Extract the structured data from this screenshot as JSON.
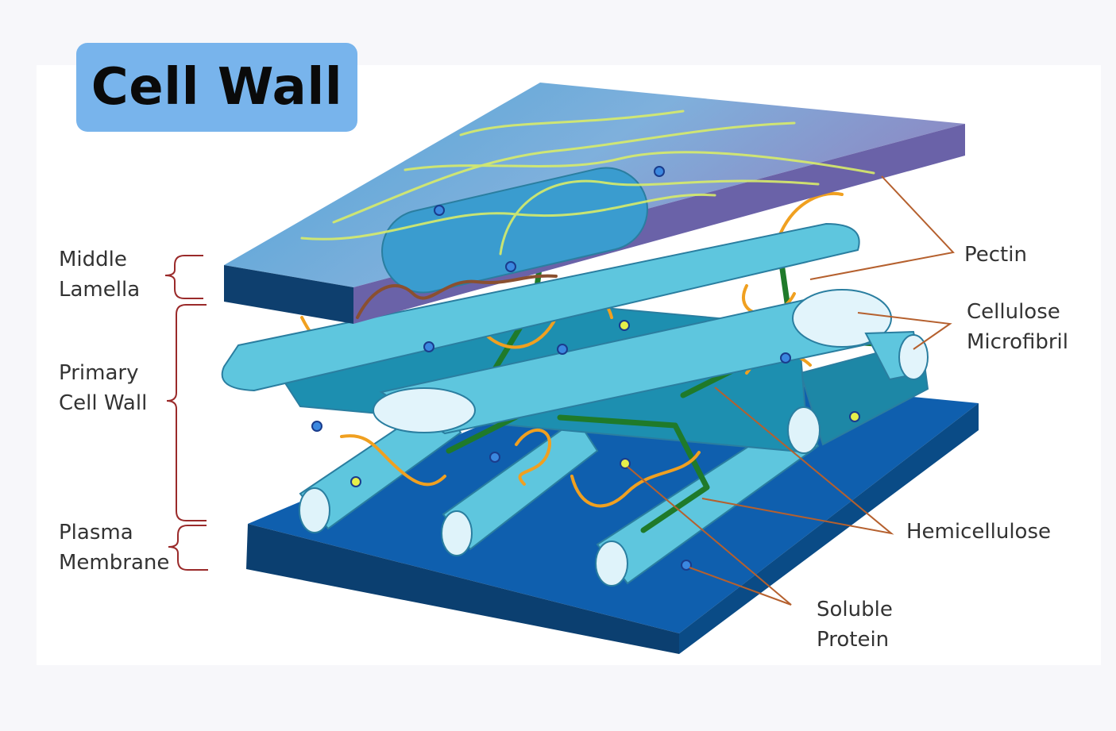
{
  "title": "Cell Wall",
  "labels": {
    "middle_lamella": [
      "Middle",
      "Lamella"
    ],
    "primary_cell_wall": [
      "Primary",
      "Cell Wall"
    ],
    "plasma_membrane": [
      "Plasma",
      "Membrane"
    ],
    "pectin": [
      "Pectin"
    ],
    "cellulose_microfibril": [
      "Cellulose",
      "Microfibril"
    ],
    "hemicellulose": [
      "Hemicellulose"
    ],
    "soluble_protein": [
      "Soluble",
      "Protein"
    ]
  },
  "colors": {
    "membrane": "#0f5fae",
    "middle_lamella": "#5aa7d6",
    "microfibril": "#5ec6de",
    "hemicellulose": "#1f7a2a",
    "pectin": "#f0a020",
    "leader_line": "#b5602e",
    "bracket": "#9a2a2a"
  }
}
